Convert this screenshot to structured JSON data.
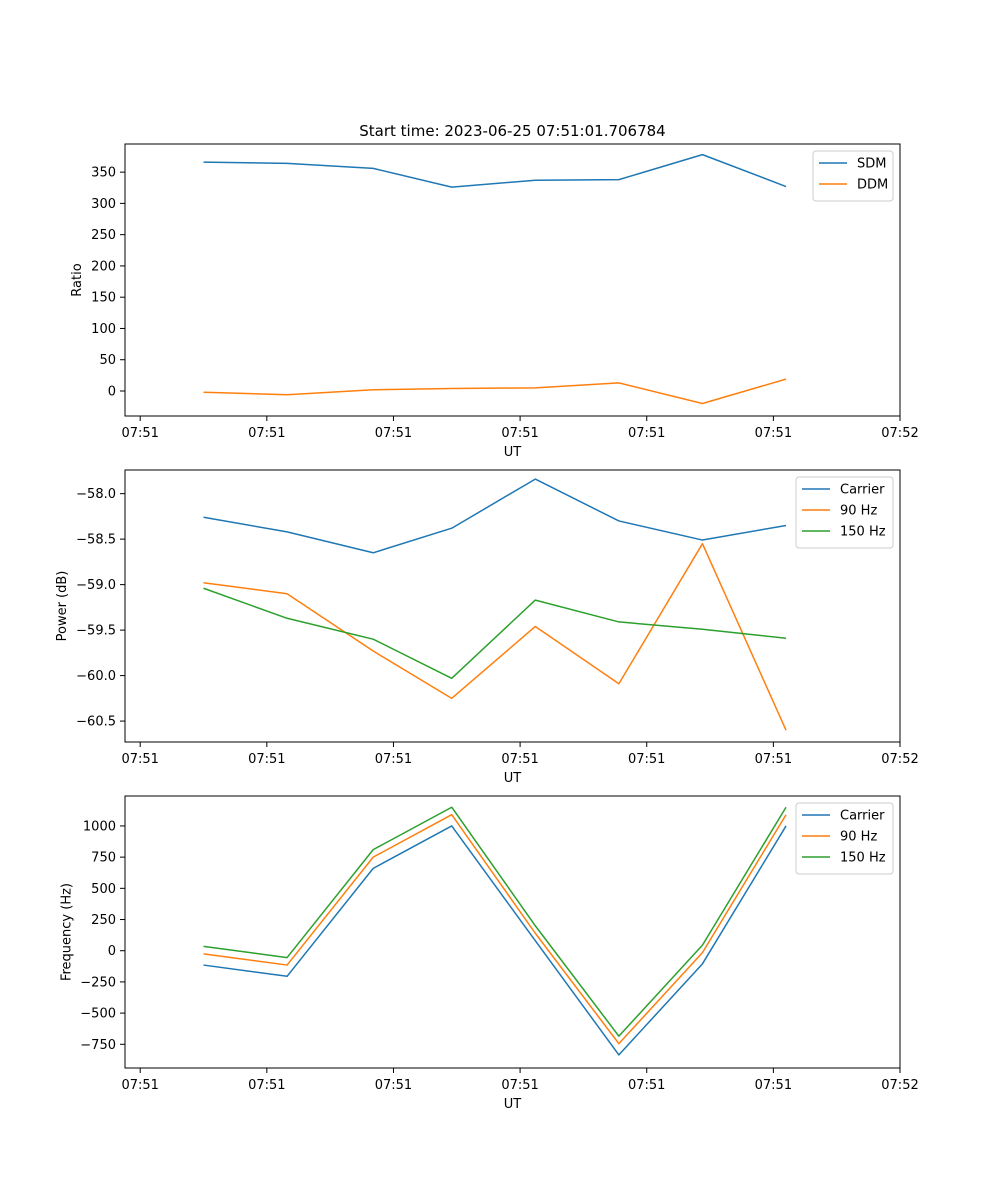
{
  "figure_title": "Start time: 2023-06-25 07:51:01.706784",
  "chart_data": [
    {
      "type": "line",
      "xlabel": "UT",
      "ylabel": "Ratio",
      "x_tick_labels": [
        "07:51",
        "07:51",
        "07:51",
        "07:51",
        "07:51",
        "07:51",
        "07:52"
      ],
      "x_tick_positions": [
        0,
        1,
        2,
        3,
        4,
        5,
        6
      ],
      "xlim": [
        -0.12,
        6.0
      ],
      "x": [
        0.5,
        1.16,
        1.84,
        2.46,
        3.12,
        3.78,
        4.44,
        5.1
      ],
      "ylim": [
        -40,
        395
      ],
      "y_ticks": [
        0,
        50,
        100,
        150,
        200,
        250,
        300,
        350
      ],
      "legend_position": "upper right",
      "grid": false,
      "series": [
        {
          "name": "SDM",
          "color": "#1f77b4",
          "values": [
            366,
            364,
            356,
            326,
            337,
            338,
            378,
            327
          ]
        },
        {
          "name": "DDM",
          "color": "#ff7f0e",
          "values": [
            -2,
            -6,
            2,
            4,
            5,
            13,
            -20,
            19
          ]
        }
      ]
    },
    {
      "type": "line",
      "xlabel": "UT",
      "ylabel": "Power (dB)",
      "x_tick_labels": [
        "07:51",
        "07:51",
        "07:51",
        "07:51",
        "07:51",
        "07:51",
        "07:52"
      ],
      "x_tick_positions": [
        0,
        1,
        2,
        3,
        4,
        5,
        6
      ],
      "xlim": [
        -0.12,
        6.0
      ],
      "x": [
        0.5,
        1.16,
        1.84,
        2.46,
        3.12,
        3.78,
        4.44,
        5.1
      ],
      "ylim": [
        -60.73,
        -57.74
      ],
      "y_ticks": [
        -58.0,
        -58.5,
        -59.0,
        -59.5,
        -60.0,
        -60.5
      ],
      "y_tick_labels": [
        "−58.0",
        "−58.5",
        "−59.0",
        "−59.5",
        "−60.0",
        "−60.5"
      ],
      "legend_position": "upper right",
      "grid": false,
      "series": [
        {
          "name": "Carrier",
          "color": "#1f77b4",
          "values": [
            -58.26,
            -58.42,
            -58.65,
            -58.38,
            -57.84,
            -58.3,
            -58.51,
            -58.35
          ]
        },
        {
          "name": "90 Hz",
          "color": "#ff7f0e",
          "values": [
            -58.98,
            -59.1,
            -59.73,
            -60.25,
            -59.46,
            -60.09,
            -58.55,
            -60.6
          ]
        },
        {
          "name": "150 Hz",
          "color": "#2ca02c",
          "values": [
            -59.04,
            -59.37,
            -59.6,
            -60.03,
            -59.17,
            -59.41,
            -59.49,
            -59.59
          ]
        }
      ]
    },
    {
      "type": "line",
      "xlabel": "UT",
      "ylabel": "Frequency (Hz)",
      "x_tick_labels": [
        "07:51",
        "07:51",
        "07:51",
        "07:51",
        "07:51",
        "07:51",
        "07:52"
      ],
      "x_tick_positions": [
        0,
        1,
        2,
        3,
        4,
        5,
        6
      ],
      "xlim": [
        -0.12,
        6.0
      ],
      "x": [
        0.5,
        1.16,
        1.84,
        2.46,
        3.12,
        3.78,
        4.44,
        5.1
      ],
      "ylim": [
        -940,
        1240
      ],
      "y_ticks": [
        1000,
        750,
        500,
        250,
        0,
        -250,
        -500,
        -750
      ],
      "y_tick_labels": [
        "1000",
        "750",
        "500",
        "250",
        "0",
        "−250",
        "−500",
        "−750"
      ],
      "legend_position": "upper right",
      "grid": false,
      "series": [
        {
          "name": "Carrier",
          "color": "#1f77b4",
          "values": [
            -115,
            -205,
            660,
            1000,
            80,
            -835,
            -105,
            1000
          ]
        },
        {
          "name": "90 Hz",
          "color": "#ff7f0e",
          "values": [
            -25,
            -115,
            750,
            1090,
            140,
            -745,
            -15,
            1090
          ]
        },
        {
          "name": "150 Hz",
          "color": "#2ca02c",
          "values": [
            35,
            -55,
            810,
            1150,
            200,
            -685,
            45,
            1150
          ]
        }
      ]
    }
  ]
}
